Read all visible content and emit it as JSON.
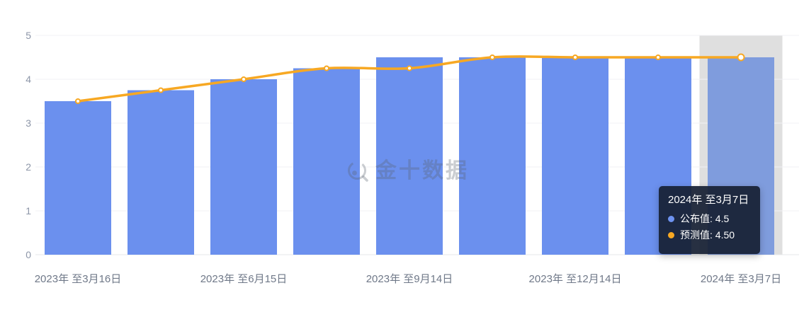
{
  "watermark": {
    "text": "金十数据"
  },
  "tooltip": {
    "title": "2024年 至3月7日",
    "bg": "rgba(23,32,52,0.93)",
    "rows": [
      {
        "text": "公布值: 4.5",
        "dot_color": "#6e93f0"
      },
      {
        "text": "预测值: 4.50",
        "dot_color": "#f7a823"
      }
    ]
  },
  "chart_data": {
    "type": "bar",
    "title": "",
    "xlabel": "",
    "ylabel": "",
    "n_points": 9,
    "x_tick_labels": [
      "2023年 至3月16日",
      "2023年 至6月15日",
      "2023年 至9月14日",
      "2023年 至12月14日",
      "2024年 至3月7日"
    ],
    "x_tick_positions": [
      0,
      2,
      4,
      6,
      8
    ],
    "series": [
      {
        "name": "公布值",
        "type": "bar",
        "color": "#6b90ee",
        "values": [
          3.5,
          3.75,
          4.0,
          4.25,
          4.5,
          4.5,
          4.5,
          4.5,
          4.5
        ]
      },
      {
        "name": "预测值",
        "type": "line",
        "color": "#f7a823",
        "values": [
          3.5,
          3.75,
          4.0,
          4.25,
          4.25,
          4.5,
          4.5,
          4.5,
          4.5
        ]
      }
    ],
    "y_ticks": [
      "0",
      "1",
      "2",
      "3",
      "4",
      "5"
    ],
    "ylim": [
      0,
      5
    ],
    "grid": true,
    "legend_position": "none",
    "highlight": {
      "index": 8,
      "bar_color": "#7f9cdd",
      "band_color": "#dfdfdf"
    },
    "colors": {
      "grid_line": "#f1f2f5",
      "axis_line": "#e4e7ea",
      "y_label": "#8d96a8",
      "x_label": "#6f7888",
      "dot_fill": "#ffffff"
    }
  }
}
